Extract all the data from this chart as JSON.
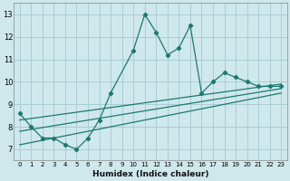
{
  "xlabel": "Humidex (Indice chaleur)",
  "xlim": [
    -0.5,
    23.5
  ],
  "ylim": [
    6.5,
    13.5
  ],
  "xticks": [
    0,
    1,
    2,
    3,
    4,
    5,
    6,
    7,
    8,
    9,
    10,
    11,
    12,
    13,
    14,
    15,
    16,
    17,
    18,
    19,
    20,
    21,
    22,
    23
  ],
  "yticks": [
    7,
    8,
    9,
    10,
    11,
    12,
    13
  ],
  "bg_color": "#cee8ec",
  "grid_color": "#aacdd4",
  "line_color": "#1e7870",
  "series1_x": [
    0,
    1,
    2,
    3,
    4,
    5,
    6,
    7,
    8,
    10,
    11,
    12,
    13,
    14,
    15,
    16,
    17,
    18,
    19,
    20,
    21,
    22,
    23
  ],
  "series1_y": [
    8.6,
    8.0,
    7.5,
    7.5,
    7.2,
    7.0,
    7.5,
    8.3,
    9.5,
    11.4,
    13.0,
    12.2,
    11.2,
    11.5,
    12.5,
    9.5,
    10.0,
    10.4,
    10.2,
    10.0,
    9.8,
    9.8,
    9.8
  ],
  "trend1_x": [
    0,
    23
  ],
  "trend1_y": [
    7.8,
    9.7
  ],
  "trend2_x": [
    0,
    23
  ],
  "trend2_y": [
    7.2,
    9.5
  ],
  "trend3_x": [
    0,
    23
  ],
  "trend3_y": [
    8.3,
    9.9
  ]
}
